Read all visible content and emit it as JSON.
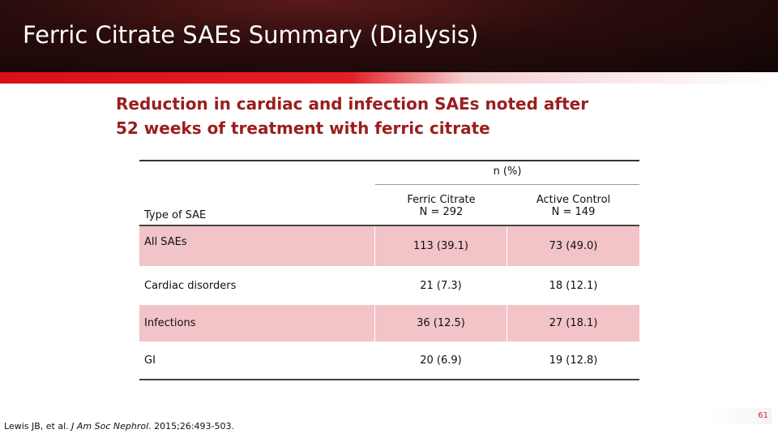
{
  "header": {
    "title": "Ferric Citrate SAEs Summary (Dialysis)"
  },
  "subtitle": "Reduction in cardiac and infection SAEs noted after 52 weeks of treatment with ferric citrate",
  "table": {
    "group_header": "n (%)",
    "columns": [
      [
        "Type of SAE"
      ],
      [
        "Ferric Citrate",
        "N = 292"
      ],
      [
        "Active Control",
        "N = 149"
      ]
    ],
    "rows": [
      [
        "All SAEs",
        "113 (39.1)",
        "73 (49.0)"
      ],
      [
        "Cardiac disorders",
        "21 (7.3)",
        "18 (12.1)"
      ],
      [
        "Infections",
        "36 (12.5)",
        "27 (18.1)"
      ],
      [
        "GI",
        "20 (6.9)",
        "19 (12.8)"
      ]
    ]
  },
  "citation": [
    "Lewis JB, et al. ",
    "J Am Soc Nephrol",
    ". 2015;26:493-503."
  ],
  "page_number": "61"
}
